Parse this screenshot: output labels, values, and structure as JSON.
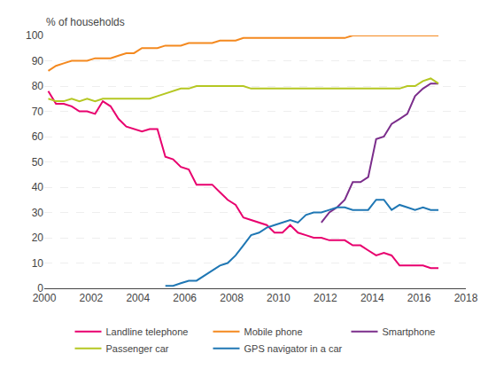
{
  "chart_data": {
    "type": "line",
    "ylabel": "% of households",
    "xlim": [
      2000,
      2018
    ],
    "ylim": [
      0,
      100
    ],
    "xticks": [
      2000,
      2002,
      2004,
      2006,
      2008,
      2010,
      2012,
      2014,
      2016,
      2018
    ],
    "yticks": [
      0,
      10,
      20,
      30,
      40,
      50,
      60,
      70,
      80,
      90,
      100
    ],
    "grid": true,
    "legend": "bottom",
    "series": [
      {
        "name": "Landline telephone",
        "color": "#e8006e",
        "line_style": "solid",
        "x": [
          2000.17,
          2000.5,
          2000.83,
          2001.17,
          2001.5,
          2001.83,
          2002.17,
          2002.5,
          2002.83,
          2003.17,
          2003.5,
          2003.83,
          2004.17,
          2004.5,
          2004.83,
          2005.17,
          2005.5,
          2005.83,
          2006.17,
          2006.5,
          2006.83,
          2007.17,
          2007.5,
          2007.83,
          2008.17,
          2008.5,
          2008.83,
          2009.17,
          2009.5,
          2009.83,
          2010.17,
          2010.5,
          2010.83,
          2011.17,
          2011.5,
          2011.83,
          2012.17,
          2012.5,
          2012.83,
          2013.17,
          2013.5,
          2013.83,
          2014.17,
          2014.5,
          2014.83,
          2015.17,
          2015.5,
          2015.83,
          2016.17,
          2016.5,
          2016.83
        ],
        "values": [
          78,
          73,
          73,
          72,
          70,
          70,
          69,
          74,
          72,
          67,
          64,
          63,
          62,
          63,
          63,
          52,
          51,
          48,
          47,
          41,
          41,
          41,
          38,
          35,
          33,
          28,
          27,
          26,
          25,
          22,
          22,
          25,
          22,
          21,
          20,
          20,
          19,
          19,
          19,
          17,
          17,
          15,
          13,
          14,
          13,
          9,
          9,
          9,
          9,
          8,
          8
        ]
      },
      {
        "name": "Mobile phone",
        "color": "#f4891f",
        "line_style": "solid",
        "x": [
          2000.17,
          2000.5,
          2000.83,
          2001.17,
          2001.5,
          2001.83,
          2002.17,
          2002.5,
          2002.83,
          2003.17,
          2003.5,
          2003.83,
          2004.17,
          2004.5,
          2004.83,
          2005.17,
          2005.5,
          2005.83,
          2006.17,
          2006.5,
          2006.83,
          2007.17,
          2007.5,
          2007.83,
          2008.17,
          2008.5,
          2008.83,
          2009.17,
          2009.5,
          2009.83,
          2010.17,
          2010.5,
          2010.83,
          2011.17,
          2011.5,
          2011.83,
          2012.17,
          2012.5,
          2012.83,
          2013.17,
          2013.5,
          2013.83,
          2014.17,
          2014.5,
          2014.83,
          2015.17,
          2015.5,
          2015.83,
          2016.17,
          2016.5,
          2016.83
        ],
        "values": [
          86,
          88,
          89,
          90,
          90,
          90,
          91,
          91,
          91,
          92,
          93,
          93,
          95,
          95,
          95,
          96,
          96,
          96,
          97,
          97,
          97,
          97,
          98,
          98,
          98,
          99,
          99,
          99,
          99,
          99,
          99,
          99,
          99,
          99,
          99,
          99,
          99,
          99,
          99,
          100,
          100,
          100,
          100,
          100,
          100,
          100,
          100,
          100,
          100,
          100,
          100
        ]
      },
      {
        "name": "Smartphone",
        "color": "#7b2d8b",
        "line_style": "solid",
        "x": [
          2011.83,
          2012.17,
          2012.5,
          2012.83,
          2013.17,
          2013.5,
          2013.83,
          2014.17,
          2014.5,
          2014.83,
          2015.17,
          2015.5,
          2015.83,
          2016.17,
          2016.5,
          2016.83
        ],
        "values": [
          26,
          30,
          32,
          35,
          42,
          42,
          44,
          59,
          60,
          65,
          67,
          69,
          76,
          79,
          81,
          81
        ]
      },
      {
        "name": "Passenger car",
        "color": "#b5c722",
        "line_style": "solid",
        "x": [
          2000.17,
          2000.5,
          2000.83,
          2001.17,
          2001.5,
          2001.83,
          2002.17,
          2002.5,
          2002.83,
          2003.17,
          2003.5,
          2003.83,
          2004.17,
          2004.5,
          2004.83,
          2005.17,
          2005.5,
          2005.83,
          2006.17,
          2006.5,
          2006.83,
          2007.17,
          2007.5,
          2007.83,
          2008.17,
          2008.5,
          2008.83,
          2009.17,
          2009.5,
          2009.83,
          2010.17,
          2010.5,
          2010.83,
          2011.17,
          2011.5,
          2011.83,
          2012.17,
          2012.5,
          2012.83,
          2013.17,
          2013.5,
          2013.83,
          2014.17,
          2014.5,
          2014.83,
          2015.17,
          2015.5,
          2015.83,
          2016.17,
          2016.5,
          2016.83
        ],
        "values": [
          75,
          74,
          74,
          75,
          74,
          75,
          74,
          75,
          75,
          75,
          75,
          75,
          75,
          75,
          76,
          77,
          78,
          79,
          79,
          80,
          80,
          80,
          80,
          80,
          80,
          80,
          79,
          79,
          79,
          79,
          79,
          79,
          79,
          79,
          79,
          79,
          79,
          79,
          79,
          79,
          79,
          79,
          79,
          79,
          79,
          79,
          80,
          80,
          82,
          83,
          81
        ]
      },
      {
        "name": "GPS navigator in a car",
        "color": "#1f77b4",
        "line_style": "solid",
        "x": [
          2005.17,
          2005.5,
          2005.83,
          2006.17,
          2006.5,
          2006.83,
          2007.17,
          2007.5,
          2007.83,
          2008.17,
          2008.5,
          2008.83,
          2009.17,
          2009.5,
          2009.83,
          2010.17,
          2010.5,
          2010.83,
          2011.17,
          2011.5,
          2011.83,
          2012.17,
          2012.5,
          2012.83,
          2013.17,
          2013.5,
          2013.83,
          2014.17,
          2014.5,
          2014.83,
          2015.17,
          2015.5,
          2015.83,
          2016.17,
          2016.5,
          2016.83
        ],
        "values": [
          1,
          1,
          2,
          3,
          3,
          5,
          7,
          9,
          10,
          13,
          17,
          21,
          22,
          24,
          25,
          26,
          27,
          26,
          29,
          30,
          30,
          31,
          32,
          32,
          31,
          31,
          31,
          35,
          35,
          31,
          33,
          32,
          31,
          32,
          31,
          31
        ]
      }
    ]
  }
}
